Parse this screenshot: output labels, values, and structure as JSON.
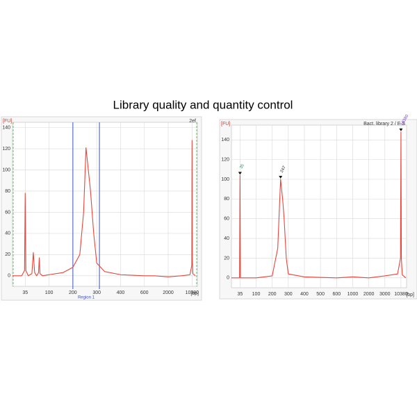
{
  "title": "Library quality and quantity control",
  "chart_data": [
    {
      "type": "line",
      "ylabel": "[FU]",
      "xlabel": "[bp]",
      "corner_label": "2ef",
      "x": [
        20,
        30,
        34,
        35,
        36,
        40,
        47,
        50,
        53,
        58,
        63,
        65,
        67,
        75,
        100,
        150,
        200,
        225,
        240,
        250,
        260,
        270,
        285,
        300,
        330,
        400,
        600,
        1000,
        2000,
        5000,
        9000,
        10200,
        10380,
        10600,
        11000,
        13000
      ],
      "series": [
        {
          "color": "#e8443a",
          "values": [
            0,
            0,
            5,
            78,
            5,
            0,
            2,
            22,
            3,
            0,
            3,
            17,
            2,
            0,
            1,
            3,
            8,
            20,
            60,
            121,
            100,
            80,
            40,
            12,
            4,
            1,
            0,
            0,
            -1,
            0,
            1,
            10,
            128,
            15,
            2,
            0
          ]
        }
      ],
      "xticks": [
        35,
        100,
        200,
        300,
        400,
        600,
        2000,
        10380
      ],
      "xlim": [
        20,
        15000
      ],
      "yticks": [
        0,
        20,
        40,
        60,
        80,
        100,
        120,
        140
      ],
      "ylim": [
        -10,
        145
      ],
      "grid": true,
      "region": {
        "label": "Region 1",
        "start": 200,
        "end": 310,
        "color": "#3b4fc4"
      },
      "edge_markers": true
    },
    {
      "type": "line",
      "ylabel": "[FU]",
      "xlabel": "[bp]",
      "corner_label": "Bact. library 2 / E.S",
      "x": [
        20,
        34,
        35,
        36,
        50,
        100,
        200,
        230,
        247,
        260,
        270,
        285,
        300,
        400,
        600,
        1000,
        2000,
        3000,
        8000,
        10000,
        10380,
        10700,
        11500,
        15000
      ],
      "series": [
        {
          "color": "#e8443a",
          "values": [
            0,
            0,
            104,
            0,
            0,
            0,
            2,
            30,
            100,
            80,
            60,
            20,
            4,
            1,
            0,
            1,
            0,
            2,
            4,
            20,
            148,
            20,
            3,
            0
          ]
        }
      ],
      "xticks": [
        35,
        100,
        200,
        300,
        400,
        500,
        600,
        1000,
        2000,
        3000,
        10380
      ],
      "xlim": [
        20,
        16000
      ],
      "yticks": [
        0,
        20,
        40,
        60,
        80,
        100,
        120,
        140
      ],
      "ylim": [
        -10,
        155
      ],
      "grid": true,
      "annotations": [
        {
          "x": 35,
          "y": 104,
          "text": "35",
          "color": "#2e8b57"
        },
        {
          "x": 247,
          "y": 100,
          "text": "247",
          "color": "#222"
        },
        {
          "x": 10380,
          "y": 148,
          "text": "10380",
          "color": "#7b3fc4"
        }
      ]
    }
  ]
}
